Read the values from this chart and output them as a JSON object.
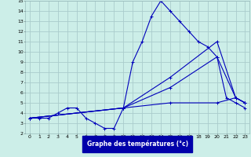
{
  "title": "Graphe des températures (°c)",
  "bg_color": "#cceee8",
  "grid_color": "#aacccc",
  "line_color": "#0000bb",
  "xlim": [
    -0.5,
    23.5
  ],
  "ylim": [
    2,
    15
  ],
  "xticks": [
    0,
    1,
    2,
    3,
    4,
    5,
    6,
    7,
    8,
    9,
    10,
    11,
    12,
    13,
    14,
    15,
    16,
    17,
    18,
    19,
    20,
    21,
    22,
    23
  ],
  "yticks": [
    2,
    3,
    4,
    5,
    6,
    7,
    8,
    9,
    10,
    11,
    12,
    13,
    14,
    15
  ],
  "series": [
    {
      "x": [
        0,
        1,
        2,
        3,
        4,
        5,
        6,
        7,
        8,
        9,
        10,
        11,
        12,
        13,
        14,
        15,
        16,
        17,
        18,
        19,
        20,
        21,
        22,
        23
      ],
      "y": [
        3.5,
        3.5,
        3.5,
        4.0,
        4.5,
        4.5,
        3.5,
        3.0,
        2.5,
        2.5,
        4.5,
        9.0,
        11.0,
        13.5,
        15.0,
        14.0,
        13.0,
        12.0,
        11.0,
        10.5,
        9.5,
        5.5,
        5.0,
        4.5
      ]
    },
    {
      "x": [
        0,
        10,
        15,
        20,
        22,
        23
      ],
      "y": [
        3.5,
        4.5,
        7.5,
        11.0,
        5.5,
        5.0
      ]
    },
    {
      "x": [
        0,
        10,
        15,
        20,
        22,
        23
      ],
      "y": [
        3.5,
        4.5,
        6.5,
        9.5,
        5.5,
        5.0
      ]
    },
    {
      "x": [
        0,
        10,
        15,
        20,
        22,
        23
      ],
      "y": [
        3.5,
        4.5,
        5.0,
        5.0,
        5.5,
        5.0
      ]
    }
  ]
}
